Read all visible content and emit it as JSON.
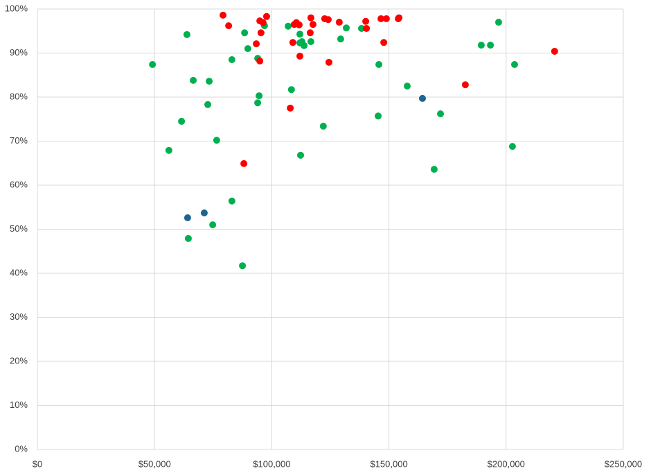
{
  "chart_data": {
    "type": "scatter",
    "xlim": [
      0,
      250000
    ],
    "xticks": [
      {
        "value": 0,
        "label": "$0"
      },
      {
        "value": 50000,
        "label": "$50,000"
      },
      {
        "value": 100000,
        "label": "$100,000"
      },
      {
        "value": 150000,
        "label": "$150,000"
      },
      {
        "value": 200000,
        "label": "$200,000"
      },
      {
        "value": 250000,
        "label": "$250,000"
      }
    ],
    "ylim": [
      0,
      100
    ],
    "yticks": [
      {
        "value": 0,
        "label": "0%"
      },
      {
        "value": 10,
        "label": "10%"
      },
      {
        "value": 20,
        "label": "20%"
      },
      {
        "value": 30,
        "label": "30%"
      },
      {
        "value": 40,
        "label": "40%"
      },
      {
        "value": 50,
        "label": "50%"
      },
      {
        "value": 60,
        "label": "60%"
      },
      {
        "value": 70,
        "label": "70%"
      },
      {
        "value": 80,
        "label": "80%"
      },
      {
        "value": 90,
        "label": "90%"
      },
      {
        "value": 100,
        "label": "100%"
      }
    ],
    "grid": true,
    "series": [
      {
        "color": "#00b050",
        "x": [
          49100,
          63800,
          66500,
          73300,
          72700,
          61500,
          56100,
          76500,
          83000,
          88400,
          89800,
          94000,
          94600,
          94000,
          96900,
          107000,
          108400,
          112000,
          112900,
          112000,
          113800,
          116700,
          112300,
          122000,
          129400,
          131800,
          138300,
          145700,
          145400,
          157800,
          172000,
          169300,
          189400,
          193300,
          196800,
          203600,
          202700,
          83000,
          74800,
          64400,
          87500
        ],
        "values": [
          87.4,
          94.2,
          83.8,
          83.6,
          78.3,
          74.5,
          67.9,
          70.2,
          88.5,
          94.6,
          91.0,
          88.8,
          80.3,
          78.7,
          96.2,
          96.1,
          81.7,
          94.3,
          92.6,
          92.3,
          91.7,
          92.6,
          66.8,
          73.4,
          93.2,
          95.7,
          95.6,
          87.4,
          75.7,
          82.5,
          76.2,
          63.6,
          91.8,
          91.8,
          97.0,
          87.4,
          68.8,
          56.4,
          51.0,
          47.9,
          41.7
        ]
      },
      {
        "color": "#ff0000",
        "x": [
          79200,
          81600,
          93400,
          94900,
          95400,
          96300,
          97800,
          94900,
          88100,
          107900,
          109000,
          109600,
          110500,
          111700,
          112000,
          116400,
          116700,
          117600,
          122600,
          124100,
          124400,
          128800,
          140100,
          140400,
          146600,
          148900,
          147800,
          154000,
          154300,
          182600,
          220700
        ],
        "values": [
          98.6,
          96.2,
          92.1,
          97.3,
          94.6,
          96.9,
          98.3,
          88.2,
          64.9,
          77.5,
          92.4,
          96.5,
          96.9,
          96.4,
          89.3,
          94.6,
          98.0,
          96.5,
          97.8,
          97.6,
          87.9,
          97.0,
          97.2,
          95.6,
          97.8,
          97.8,
          92.4,
          97.8,
          98.0,
          82.8,
          90.4
        ]
      },
      {
        "color": "#1f6391",
        "x": [
          64100,
          71200,
          164300
        ],
        "values": [
          52.6,
          53.7,
          79.7
        ]
      }
    ]
  }
}
